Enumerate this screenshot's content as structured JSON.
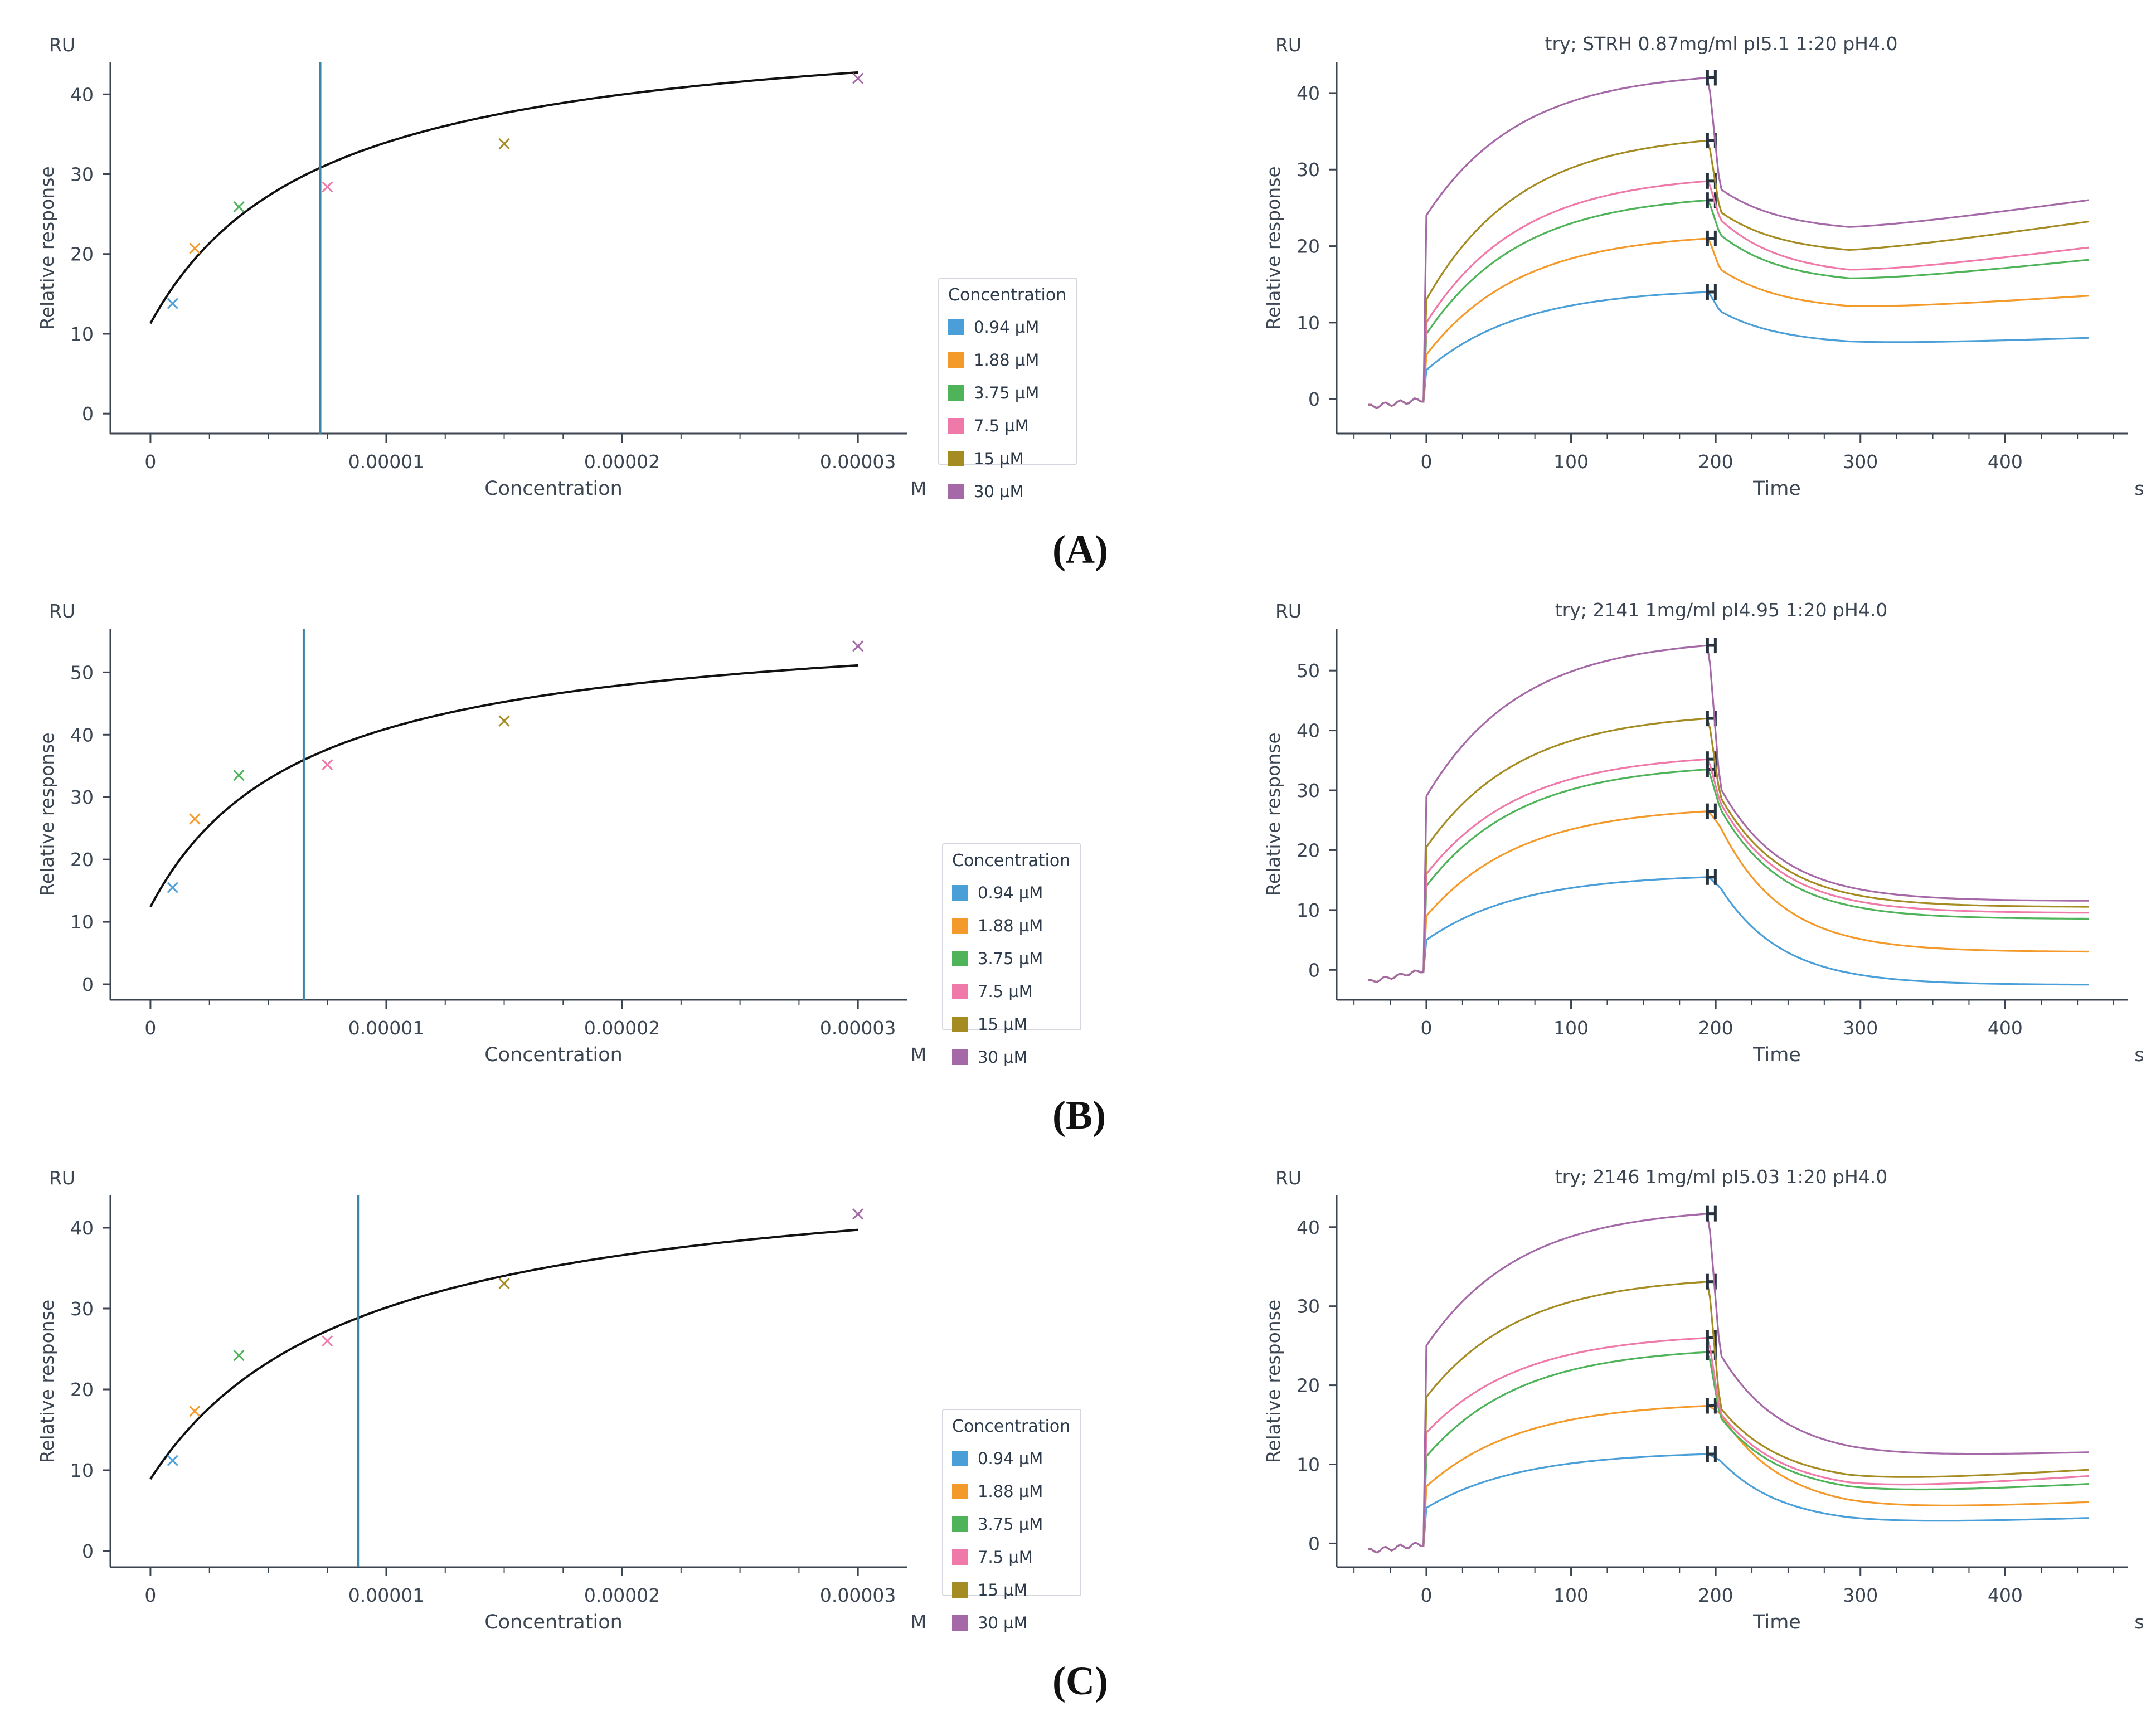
{
  "panel_labels": [
    "(A)",
    "(B)",
    "(C)"
  ],
  "legend": {
    "title": "Concentration",
    "items": [
      {
        "label": "0.94 µM",
        "color": "#4a9fd8"
      },
      {
        "label": "1.88 µM",
        "color": "#f39a2b"
      },
      {
        "label": "3.75 µM",
        "color": "#4fb35a"
      },
      {
        "label": "7.5 µM",
        "color": "#ef79a8"
      },
      {
        "label": "15 µM",
        "color": "#a58c22"
      },
      {
        "label": "30 µM",
        "color": "#a569a8"
      }
    ]
  },
  "chart_data": [
    {
      "type": "scatter",
      "panel": "A",
      "kind": "affinity",
      "title": "",
      "unit_label": "RU",
      "ylabel": "Relative response",
      "xlabel": "Concentration",
      "xunit": "M",
      "xlim": [
        -1.7e-06,
        3.21e-05
      ],
      "ylim": [
        -2.5,
        44
      ],
      "xticks": [
        0,
        1e-05,
        2e-05,
        3e-05
      ],
      "xtick_labels": [
        "0",
        "0.00001",
        "0.00002",
        "0.00003"
      ],
      "yticks": [
        0,
        10,
        20,
        30,
        40
      ],
      "points": [
        {
          "x": 9.4e-07,
          "y": 13.8,
          "color": "#4a9fd8"
        },
        {
          "x": 1.88e-06,
          "y": 20.7,
          "color": "#f39a2b"
        },
        {
          "x": 3.75e-06,
          "y": 25.9,
          "color": "#4fb35a"
        },
        {
          "x": 7.5e-06,
          "y": 28.4,
          "color": "#ef79a8"
        },
        {
          "x": 1.5e-05,
          "y": 33.8,
          "color": "#a58c22"
        },
        {
          "x": 3e-05,
          "y": 42.0,
          "color": "#a569a8"
        }
      ],
      "fit": {
        "offset": 11.3,
        "rmax": 39.0,
        "kd": 7.2e-06
      },
      "kd_line_x": 7.2e-06
    },
    {
      "type": "line",
      "panel": "A",
      "kind": "sensorgram",
      "title": "try; STRH 0.87mg/ml pI5.1 1:20  pH4.0",
      "unit_label": "RU",
      "ylabel": "Relative response",
      "xlabel": "Time",
      "xunit": "s",
      "xlim": [
        -62,
        485
      ],
      "ylim": [
        -4.5,
        44
      ],
      "xticks": [
        0,
        100,
        200,
        300,
        400
      ],
      "yticks": [
        0,
        10,
        20,
        30,
        40
      ],
      "series": [
        {
          "name": "0.94 µM",
          "color": "#4a9fd8",
          "pre": -1.0,
          "start": 3.8,
          "end": 14.0,
          "peak": 11.5,
          "floor": 7.0,
          "last": 8.0
        },
        {
          "name": "1.88 µM",
          "color": "#f39a2b",
          "pre": -1.0,
          "start": 5.8,
          "end": 21.0,
          "peak": 17.0,
          "floor": 11.5,
          "last": 13.5
        },
        {
          "name": "3.75 µM",
          "color": "#4fb35a",
          "pre": -1.0,
          "start": 8.5,
          "end": 26.0,
          "peak": 21.5,
          "floor": 15.0,
          "last": 18.2
        },
        {
          "name": "7.5 µM",
          "color": "#ef79a8",
          "pre": -1.0,
          "start": 10.0,
          "end": 28.5,
          "peak": 23.5,
          "floor": 16.0,
          "last": 19.8
        },
        {
          "name": "15 µM",
          "color": "#a58c22",
          "pre": -1.0,
          "start": 13.0,
          "end": 33.8,
          "peak": 24.5,
          "floor": 18.8,
          "last": 23.2
        },
        {
          "name": "30 µM",
          "color": "#a569a8",
          "pre": -1.0,
          "start": 24.0,
          "end": 42.0,
          "peak": 27.5,
          "floor": 21.8,
          "last": 26.0
        }
      ]
    },
    {
      "type": "scatter",
      "panel": "B",
      "kind": "affinity",
      "title": "",
      "unit_label": "RU",
      "ylabel": "Relative response",
      "xlabel": "Concentration",
      "xunit": "M",
      "xlim": [
        -1.7e-06,
        3.21e-05
      ],
      "ylim": [
        -2.5,
        57
      ],
      "xticks": [
        0,
        1e-05,
        2e-05,
        3e-05
      ],
      "xtick_labels": [
        "0",
        "0.00001",
        "0.00002",
        "0.00003"
      ],
      "yticks": [
        0,
        10,
        20,
        30,
        40,
        50
      ],
      "points": [
        {
          "x": 9.4e-07,
          "y": 15.5,
          "color": "#4a9fd8"
        },
        {
          "x": 1.88e-06,
          "y": 26.5,
          "color": "#f39a2b"
        },
        {
          "x": 3.75e-06,
          "y": 33.5,
          "color": "#4fb35a"
        },
        {
          "x": 7.5e-06,
          "y": 35.2,
          "color": "#ef79a8"
        },
        {
          "x": 1.5e-05,
          "y": 42.2,
          "color": "#a58c22"
        },
        {
          "x": 3e-05,
          "y": 54.2,
          "color": "#a569a8"
        }
      ],
      "fit": {
        "offset": 12.4,
        "rmax": 47.1,
        "kd": 6.5e-06
      },
      "kd_line_x": 6.5e-06
    },
    {
      "type": "line",
      "panel": "B",
      "kind": "sensorgram",
      "title": "try; 2141 1mg/ml pI4.95 1:20  pH4.0",
      "unit_label": "RU",
      "ylabel": "Relative response",
      "xlabel": "Time",
      "xunit": "s",
      "xlim": [
        -62,
        485
      ],
      "ylim": [
        -5,
        57
      ],
      "xticks": [
        0,
        100,
        200,
        300,
        400
      ],
      "yticks": [
        0,
        10,
        20,
        30,
        40,
        50
      ],
      "series": [
        {
          "name": "0.94 µM",
          "color": "#4a9fd8",
          "pre": -2.0,
          "start": 5.0,
          "end": 15.5,
          "peak": 13.8,
          "floor": -2.5,
          "last": -2.5
        },
        {
          "name": "1.88 µM",
          "color": "#f39a2b",
          "pre": -2.0,
          "start": 9.0,
          "end": 26.5,
          "peak": 24.0,
          "floor": 3.0,
          "last": 3.0
        },
        {
          "name": "3.75 µM",
          "color": "#4fb35a",
          "pre": -2.0,
          "start": 14.0,
          "end": 33.5,
          "peak": 27.0,
          "floor": 8.5,
          "last": 8.5
        },
        {
          "name": "7.5 µM",
          "color": "#ef79a8",
          "pre": -2.0,
          "start": 16.0,
          "end": 35.2,
          "peak": 28.0,
          "floor": 9.5,
          "last": 9.5
        },
        {
          "name": "15 µM",
          "color": "#a58c22",
          "pre": -2.0,
          "start": 20.5,
          "end": 42.0,
          "peak": 29.0,
          "floor": 10.5,
          "last": 10.5
        },
        {
          "name": "30 µM",
          "color": "#a569a8",
          "pre": -2.0,
          "start": 29.0,
          "end": 54.2,
          "peak": 30.5,
          "floor": 11.5,
          "last": 11.5
        }
      ]
    },
    {
      "type": "scatter",
      "panel": "C",
      "kind": "affinity",
      "title": "",
      "unit_label": "RU",
      "ylabel": "Relative response",
      "xlabel": "Concentration",
      "xunit": "M",
      "xlim": [
        -1.7e-06,
        3.21e-05
      ],
      "ylim": [
        -2.0,
        44
      ],
      "xticks": [
        0,
        1e-05,
        2e-05,
        3e-05
      ],
      "xtick_labels": [
        "0",
        "0.00001",
        "0.00002",
        "0.00003"
      ],
      "yticks": [
        0,
        10,
        20,
        30,
        40
      ],
      "points": [
        {
          "x": 9.4e-07,
          "y": 11.2,
          "color": "#4a9fd8"
        },
        {
          "x": 1.88e-06,
          "y": 17.3,
          "color": "#f39a2b"
        },
        {
          "x": 3.75e-06,
          "y": 24.2,
          "color": "#4fb35a"
        },
        {
          "x": 7.5e-06,
          "y": 26.0,
          "color": "#ef79a8"
        },
        {
          "x": 1.5e-05,
          "y": 33.1,
          "color": "#a58c22"
        },
        {
          "x": 3e-05,
          "y": 41.7,
          "color": "#a569a8"
        }
      ],
      "fit": {
        "offset": 8.9,
        "rmax": 39.9,
        "kd": 8.8e-06
      },
      "kd_line_x": 8.8e-06
    },
    {
      "type": "line",
      "panel": "C",
      "kind": "sensorgram",
      "title": "try; 2146 1mg/ml pI5.03 1:20  pH4.0",
      "unit_label": "RU",
      "ylabel": "Relative response",
      "xlabel": "Time",
      "xunit": "s",
      "xlim": [
        -62,
        485
      ],
      "ylim": [
        -3,
        44
      ],
      "xticks": [
        0,
        100,
        200,
        300,
        400
      ],
      "yticks": [
        0,
        10,
        20,
        30,
        40
      ],
      "series": [
        {
          "name": "0.94 µM",
          "color": "#4a9fd8",
          "pre": -1.0,
          "start": 4.5,
          "end": 11.3,
          "peak": 10.5,
          "floor": 2.3,
          "last": 3.2
        },
        {
          "name": "1.88 µM",
          "color": "#f39a2b",
          "pre": -1.0,
          "start": 7.2,
          "end": 17.4,
          "peak": 16.5,
          "floor": 4.0,
          "last": 5.2
        },
        {
          "name": "3.75 µM",
          "color": "#4fb35a",
          "pre": -1.0,
          "start": 11.0,
          "end": 24.2,
          "peak": 16.0,
          "floor": 6.0,
          "last": 7.5
        },
        {
          "name": "7.5 µM",
          "color": "#ef79a8",
          "pre": -1.0,
          "start": 14.0,
          "end": 26.0,
          "peak": 16.5,
          "floor": 6.5,
          "last": 8.5
        },
        {
          "name": "15 µM",
          "color": "#a58c22",
          "pre": -1.0,
          "start": 18.5,
          "end": 33.1,
          "peak": 17.2,
          "floor": 7.5,
          "last": 9.3
        },
        {
          "name": "30 µM",
          "color": "#a569a8",
          "pre": -1.0,
          "start": 25.0,
          "end": 41.7,
          "peak": 24.0,
          "floor": 10.7,
          "last": 11.5
        }
      ]
    }
  ]
}
